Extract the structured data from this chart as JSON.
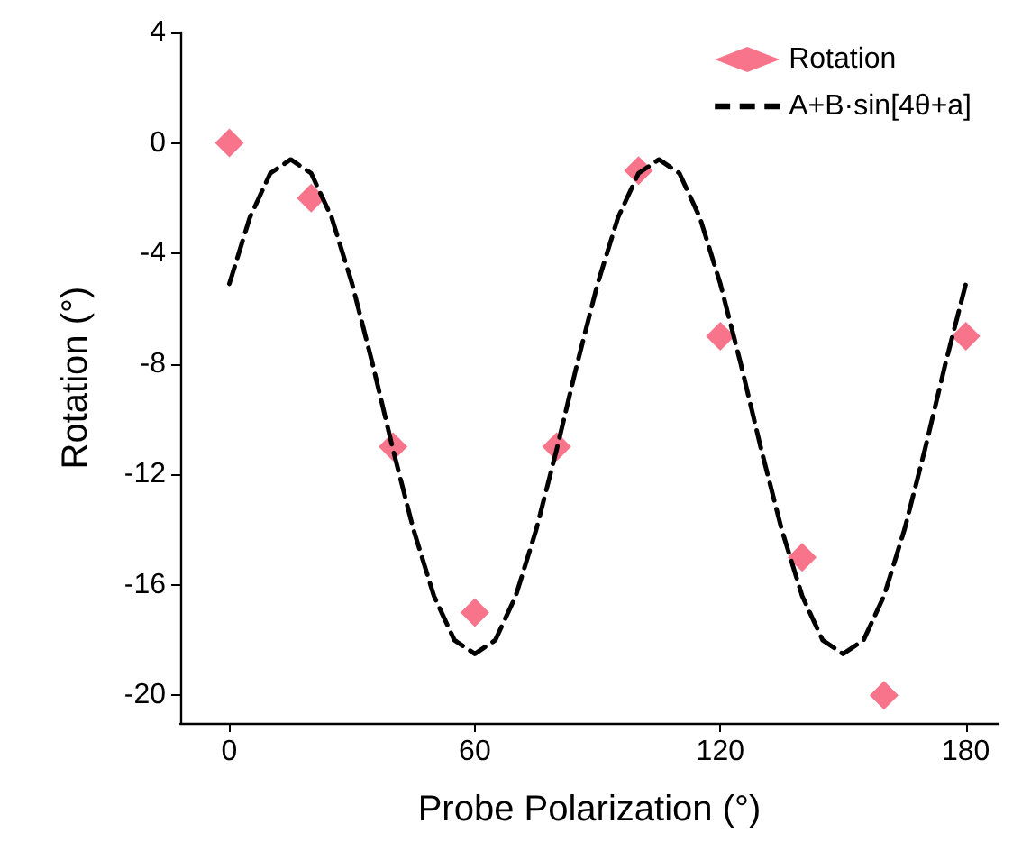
{
  "chart_data": {
    "type": "scatter",
    "xlabel": "Probe Polarization (°)",
    "ylabel": "Rotation (°)",
    "xlim": [
      -12,
      188
    ],
    "xticks": [
      0,
      60,
      120,
      180
    ],
    "ylim": [
      -21,
      4
    ],
    "yticks": [
      -20,
      -16,
      -12,
      -8,
      -4,
      0,
      4
    ],
    "grid": false,
    "legend": "top right",
    "series": [
      {
        "name": "Rotation",
        "marker": "diamond",
        "color": "#f5516e",
        "x": [
          0,
          20,
          40,
          60,
          80,
          100,
          120,
          140,
          160,
          180
        ],
        "values": [
          0,
          -2,
          -11,
          -17,
          -11,
          -1,
          -7,
          -15,
          -20,
          -7
        ]
      },
      {
        "name": "A+B·sin[4θ+a]",
        "type": "line",
        "marker": "none",
        "line_style": "dashed",
        "color": "#000000",
        "x": [
          0,
          5,
          10,
          15,
          20,
          25,
          30,
          35,
          40,
          45,
          50,
          55,
          60,
          65,
          70,
          75,
          80,
          85,
          90,
          95,
          100,
          105,
          110,
          115,
          120,
          125,
          130,
          135,
          140,
          145,
          150,
          155,
          160,
          165,
          170,
          175,
          180
        ],
        "values": [
          -5.1,
          -2.7,
          -1.1,
          -0.6,
          -1.1,
          -2.7,
          -5.1,
          -8.0,
          -11.1,
          -14.0,
          -16.4,
          -18.0,
          -18.5,
          -18.0,
          -16.4,
          -14.0,
          -11.1,
          -8.0,
          -5.1,
          -2.7,
          -1.1,
          -0.6,
          -1.1,
          -2.7,
          -5.1,
          -8.0,
          -11.1,
          -14.0,
          -16.4,
          -18.0,
          -18.5,
          -18.0,
          -16.4,
          -14.0,
          -11.1,
          -8.0,
          -5.1
        ]
      }
    ]
  }
}
